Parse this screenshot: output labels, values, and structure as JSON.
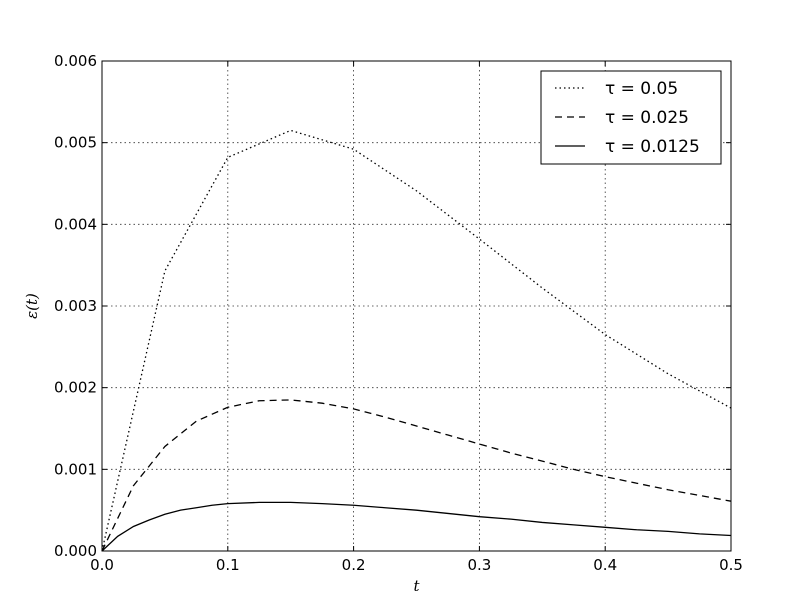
{
  "chart_data": {
    "type": "line",
    "title": "",
    "xlabel": "t",
    "ylabel": "ε(t)",
    "xlim": [
      0.0,
      0.5
    ],
    "ylim": [
      0.0,
      0.006
    ],
    "xticks": [
      "0.0",
      "0.1",
      "0.2",
      "0.3",
      "0.4",
      "0.5"
    ],
    "yticks": [
      "0.000",
      "0.001",
      "0.002",
      "0.003",
      "0.004",
      "0.005",
      "0.006"
    ],
    "grid": true,
    "legend_position": "top-right",
    "series": [
      {
        "name": "τ = 0.05",
        "style": "dotted",
        "x": [
          0.0,
          0.05,
          0.1,
          0.15,
          0.2,
          0.25,
          0.3,
          0.35,
          0.4,
          0.45,
          0.5
        ],
        "y": [
          0.0,
          0.00343,
          0.00482,
          0.00515,
          0.00492,
          0.00441,
          0.00382,
          0.00322,
          0.00265,
          0.00217,
          0.00175
        ]
      },
      {
        "name": "τ = 0.025",
        "style": "dashed",
        "x": [
          0.0,
          0.025,
          0.05,
          0.075,
          0.1,
          0.125,
          0.15,
          0.175,
          0.2,
          0.225,
          0.25,
          0.275,
          0.3,
          0.325,
          0.35,
          0.375,
          0.4,
          0.425,
          0.45,
          0.475,
          0.5
        ],
        "y": [
          0.0,
          0.0008,
          0.00128,
          0.00159,
          0.00176,
          0.00184,
          0.00185,
          0.00181,
          0.00174,
          0.00164,
          0.00153,
          0.00142,
          0.00131,
          0.0012,
          0.0011,
          0.001,
          0.00091,
          0.00083,
          0.00075,
          0.00068,
          0.00061
        ]
      },
      {
        "name": "τ = 0.0125",
        "style": "solid",
        "x": [
          0.0,
          0.0125,
          0.025,
          0.0375,
          0.05,
          0.0625,
          0.075,
          0.0875,
          0.1,
          0.125,
          0.15,
          0.175,
          0.2,
          0.225,
          0.25,
          0.275,
          0.3,
          0.325,
          0.35,
          0.375,
          0.4,
          0.425,
          0.45,
          0.475,
          0.5
        ],
        "y": [
          0.0,
          0.00018,
          0.0003,
          0.00038,
          0.00045,
          0.0005,
          0.00053,
          0.00056,
          0.00058,
          0.000595,
          0.000595,
          0.00058,
          0.00056,
          0.00053,
          0.0005,
          0.00046,
          0.00042,
          0.00039,
          0.00035,
          0.00032,
          0.00029,
          0.00026,
          0.00024,
          0.00021,
          0.00019
        ]
      }
    ]
  }
}
